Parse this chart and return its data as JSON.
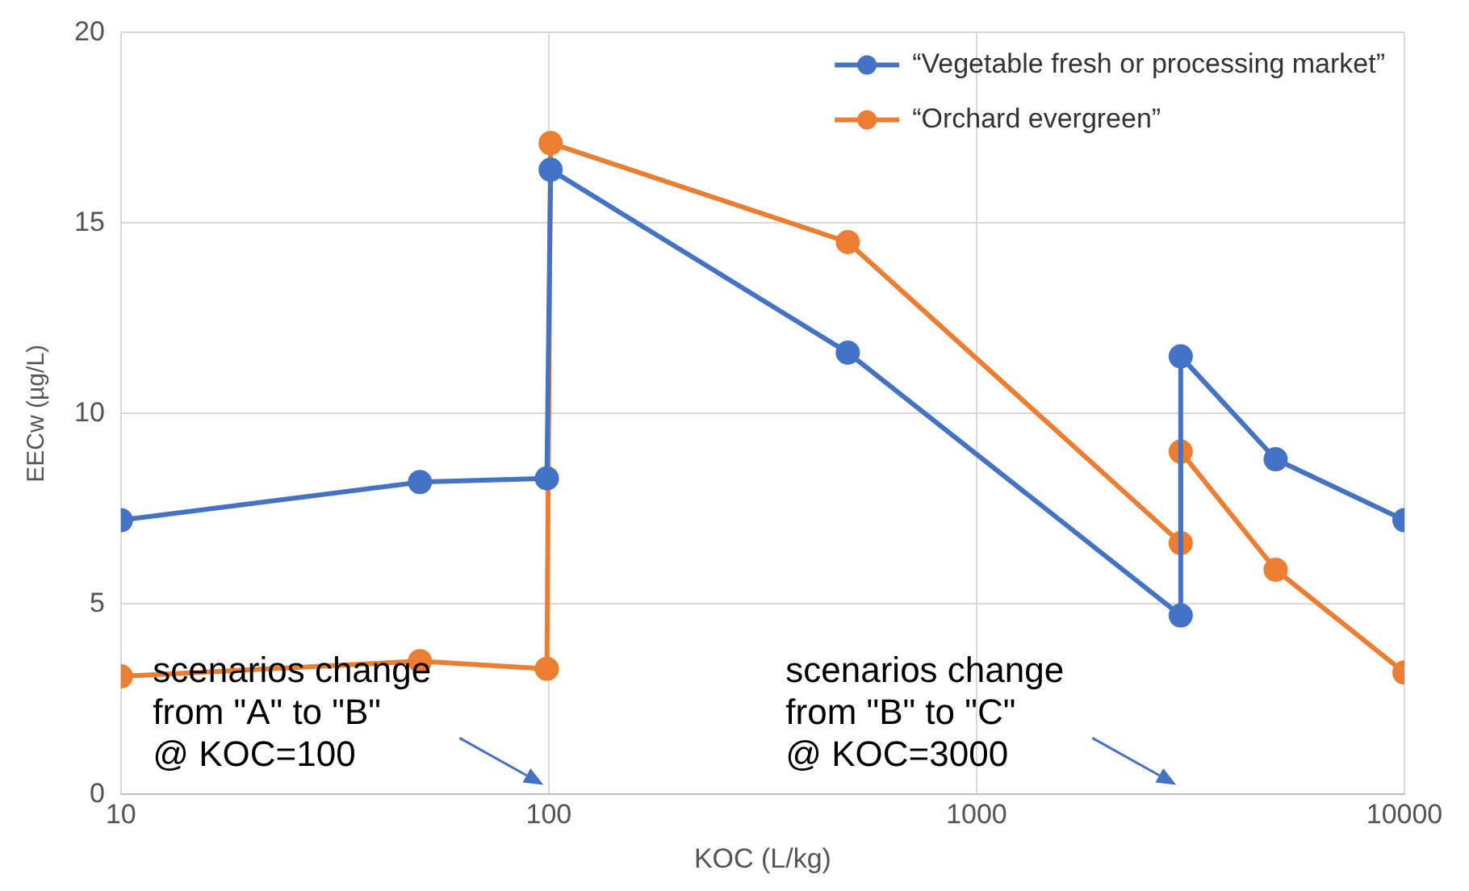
{
  "chart_data": {
    "type": "line",
    "xlabel": "KOC (L/kg)",
    "ylabel": "EECw (µg/L)",
    "log": "x",
    "xlim": [
      10,
      10000
    ],
    "xticks": [
      10,
      100,
      1000,
      10000
    ],
    "ylim": [
      0,
      20
    ],
    "yticks": [
      0,
      5,
      10,
      15,
      20
    ],
    "grid": true,
    "legend": "top right",
    "marker": "circle",
    "line_style": "solid",
    "series": [
      {
        "name": "“Vegetable fresh or processing market”",
        "color": "#4472c4",
        "x": [
          10,
          50,
          99,
          101,
          500,
          3000,
          3000,
          5000,
          10000
        ],
        "values": [
          7.2,
          8.2,
          8.3,
          16.4,
          11.6,
          4.7,
          11.5,
          8.8,
          7.2
        ]
      },
      {
        "name": "“Orchard evergreen”",
        "color": "#ed7d31",
        "x": [
          10,
          50,
          99,
          101,
          500,
          3000,
          3000,
          5000,
          10000
        ],
        "values": [
          3.1,
          3.5,
          3.3,
          17.1,
          14.5,
          6.6,
          9.0,
          5.9,
          3.2
        ]
      }
    ],
    "annotations": [
      "scenarios change\nfrom \"A\" to \"B\"\n@ KOC=100",
      "scenarios change\nfrom \"B\" to \"C\"\n@ KOC=3000"
    ]
  }
}
